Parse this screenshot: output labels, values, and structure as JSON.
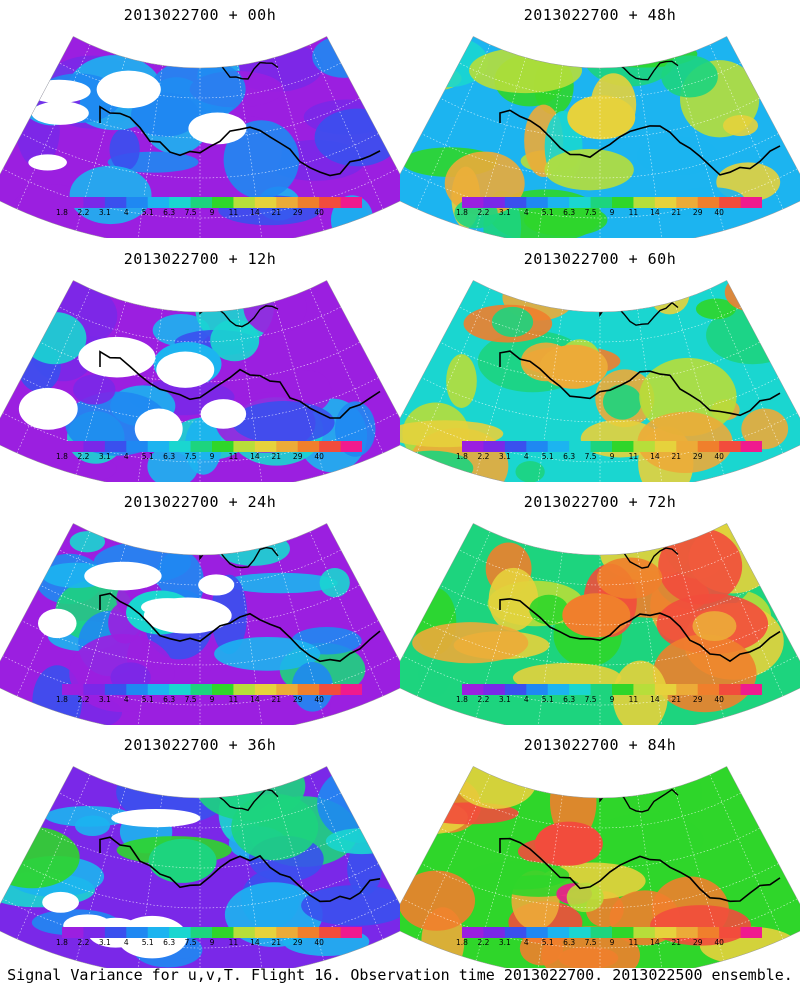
{
  "colors": [
    "#9b1fe0",
    "#7a28e8",
    "#3a50ee",
    "#1f88f2",
    "#1cb4f0",
    "#1ad6d0",
    "#1dd47e",
    "#2fd62a",
    "#b7de3a",
    "#e6d23c",
    "#ecab38",
    "#f07f2c",
    "#f24c3c",
    "#f01a8e"
  ],
  "colorbar_labels": [
    "1.8",
    "2.2",
    "3.1",
    "4",
    "5.1",
    "6.3",
    "7.5",
    "9",
    "11",
    "14",
    "21",
    "29",
    "40"
  ],
  "panels": [
    {
      "title": "2013022700 + 00h",
      "mean_level": 1
    },
    {
      "title": "2013022700 + 48h",
      "mean_level": 7
    },
    {
      "title": "2013022700 + 12h",
      "mean_level": 2
    },
    {
      "title": "2013022700 + 60h",
      "mean_level": 8
    },
    {
      "title": "2013022700 + 24h",
      "mean_level": 3
    },
    {
      "title": "2013022700 + 72h",
      "mean_level": 9
    },
    {
      "title": "2013022700 + 36h",
      "mean_level": 4
    },
    {
      "title": "2013022700 + 84h",
      "mean_level": 10
    }
  ],
  "caption": "Signal Variance for u,v,T. Flight 16. Observation time 2013022700. 2013022500 ensemble."
}
